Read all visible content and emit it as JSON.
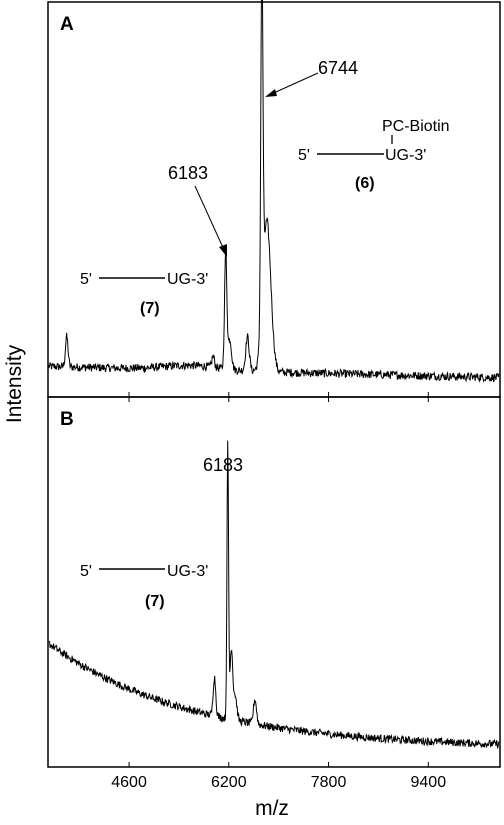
{
  "chart_data": [
    {
      "panel": "A",
      "type": "line",
      "xlim": [
        3300,
        10550
      ],
      "ylim": [
        0,
        100
      ],
      "xticks": [
        "4600",
        "6200",
        "7800",
        "9400"
      ],
      "peaks": [
        {
          "x": 3600,
          "y": 8,
          "w": 30
        },
        {
          "x": 5950,
          "y": 3,
          "w": 30
        },
        {
          "x": 6150,
          "y": 31,
          "w": 26
        },
        {
          "x": 6215,
          "y": 8,
          "w": 40
        },
        {
          "x": 6500,
          "y": 9,
          "w": 40
        },
        {
          "x": 6730,
          "y": 93,
          "w": 24
        },
        {
          "x": 6810,
          "y": 40,
          "w": 90
        }
      ],
      "labels": [
        {
          "text": "6744",
          "x": 6744
        },
        {
          "text": "6183",
          "x": 6183
        }
      ],
      "structures": [
        {
          "prefix": "5'",
          "suffix": "UG-3'",
          "number": "(6)",
          "tag": "PC-Biotin"
        },
        {
          "prefix": "5'",
          "suffix": "UG-3'",
          "number": "(7)",
          "tag": ""
        }
      ]
    },
    {
      "panel": "B",
      "type": "line",
      "xlim": [
        3300,
        10550
      ],
      "ylim": [
        0,
        100
      ],
      "xticks": [
        "4600",
        "6200",
        "7800",
        "9400"
      ],
      "peaks": [
        {
          "x": 6183,
          "y": 78,
          "w": 18
        },
        {
          "x": 6240,
          "y": 20,
          "w": 30
        },
        {
          "x": 6300,
          "y": 7,
          "w": 40
        },
        {
          "x": 5970,
          "y": 11,
          "w": 30
        },
        {
          "x": 6620,
          "y": 7,
          "w": 35
        }
      ],
      "labels": [
        {
          "text": "6183",
          "x": 6183
        }
      ],
      "structures": [
        {
          "prefix": "5'",
          "suffix": "UG-3'",
          "number": "(7)",
          "tag": ""
        }
      ]
    }
  ],
  "axes": {
    "xlabel": "m/z",
    "ylabel": "Intensity"
  }
}
